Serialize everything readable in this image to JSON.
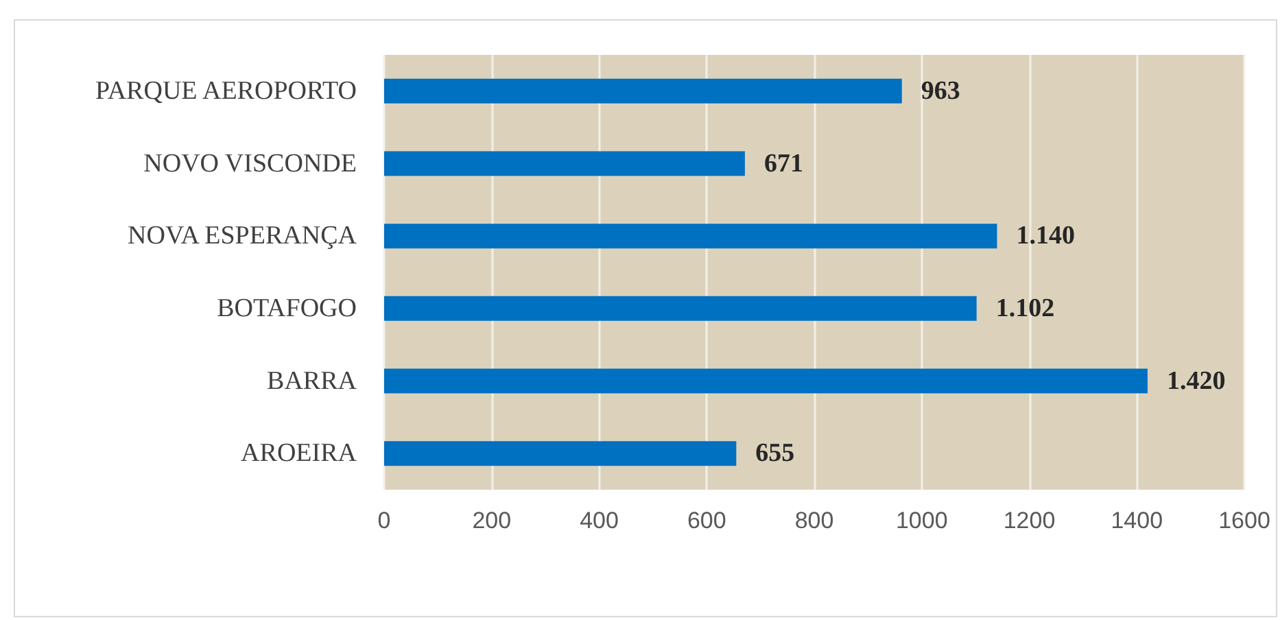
{
  "chart_data": {
    "type": "bar",
    "orientation": "horizontal",
    "categories": [
      "PARQUE AEROPORTO",
      "NOVO VISCONDE",
      "NOVA ESPERANÇA",
      "BOTAFOGO",
      "BARRA",
      "AROEIRA"
    ],
    "values": [
      963,
      671,
      1140,
      1102,
      1420,
      655
    ],
    "value_labels": [
      "963",
      "671",
      "1.140",
      "1.102",
      "1.420",
      "655"
    ],
    "color": "#0070c0",
    "xlim": [
      0,
      1600
    ],
    "xticks": [
      0,
      200,
      400,
      600,
      800,
      1000,
      1200,
      1400,
      1600
    ],
    "grid": "x"
  }
}
